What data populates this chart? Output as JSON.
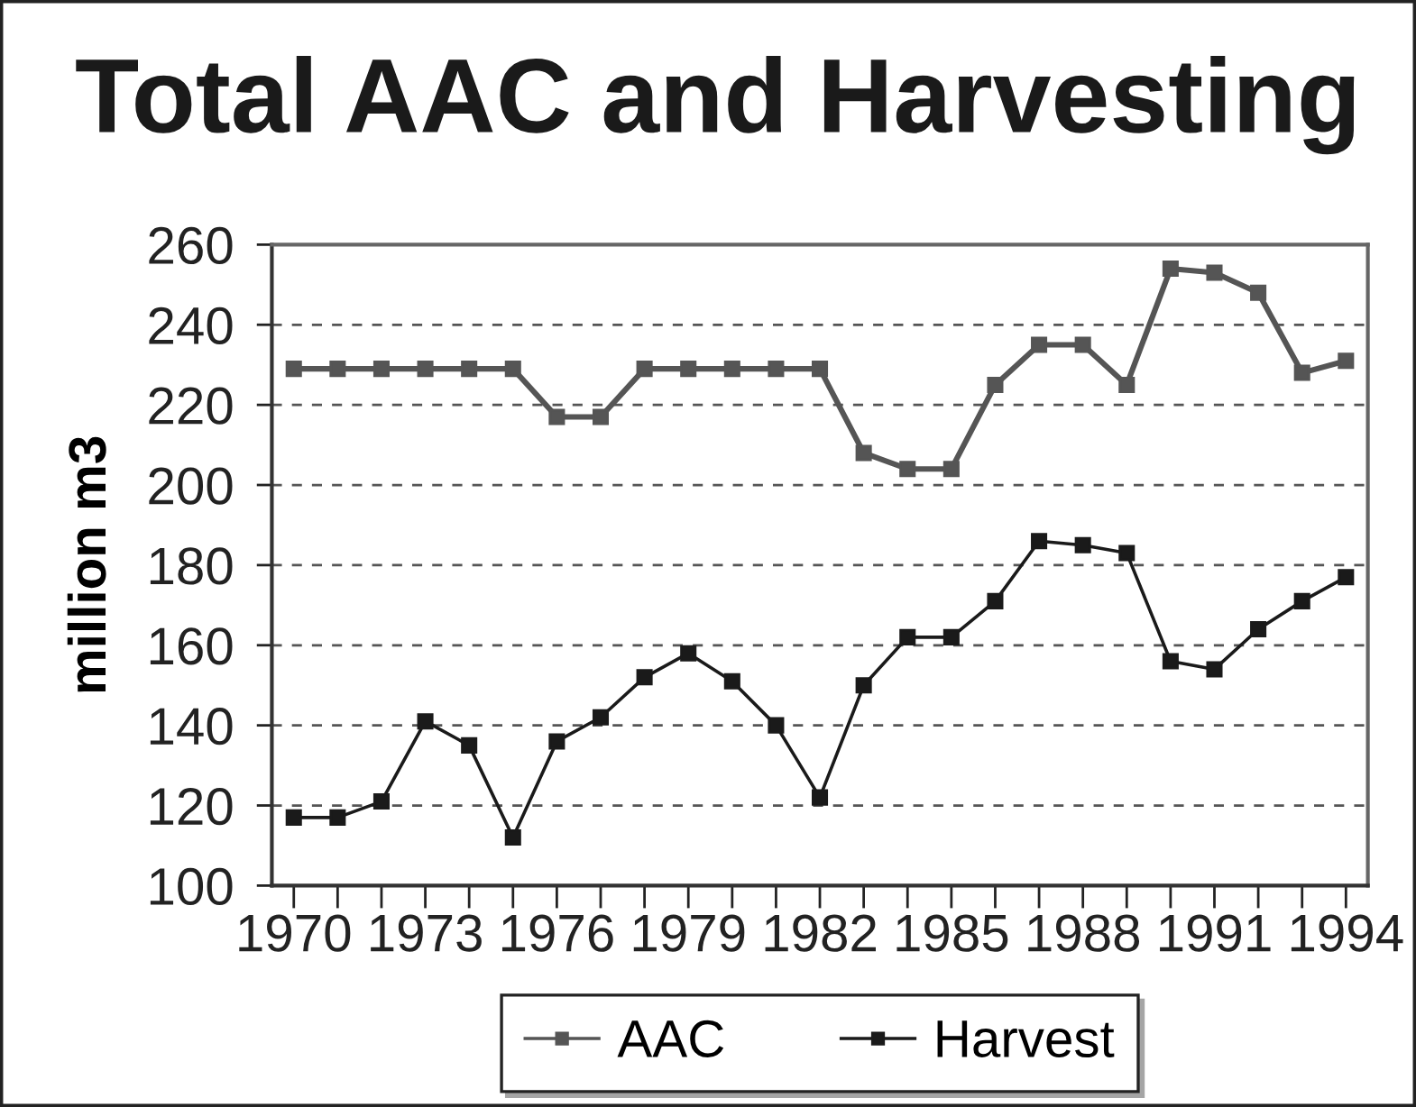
{
  "chart_data": {
    "type": "line",
    "title": "Total AAC and Harvesting",
    "ylabel": "million m3",
    "x": [
      1970,
      1971,
      1972,
      1973,
      1974,
      1975,
      1976,
      1977,
      1978,
      1979,
      1980,
      1981,
      1982,
      1983,
      1984,
      1985,
      1986,
      1987,
      1988,
      1989,
      1990,
      1991,
      1992,
      1993,
      1994
    ],
    "series": [
      {
        "name": "AAC",
        "color": "#555555",
        "values": [
          229,
          229,
          229,
          229,
          229,
          229,
          217,
          217,
          229,
          229,
          229,
          229,
          229,
          208,
          204,
          204,
          225,
          235,
          235,
          225,
          254,
          253,
          248,
          228,
          231
        ]
      },
      {
        "name": "Harvest",
        "color": "#1a1a1a",
        "values": [
          117,
          117,
          121,
          141,
          135,
          112,
          136,
          142,
          152,
          158,
          151,
          140,
          122,
          150,
          162,
          162,
          171,
          186,
          185,
          183,
          156,
          154,
          164,
          171,
          177
        ]
      }
    ],
    "xlim": [
      1969.5,
      1994.5
    ],
    "xticks": [
      1970,
      {
        "value": 1971,
        "label": null
      },
      {
        "value": 1972,
        "label": null
      },
      1973,
      {
        "value": 1974,
        "label": null
      },
      {
        "value": 1975,
        "label": null
      },
      1976,
      {
        "value": 1977,
        "label": null
      },
      {
        "value": 1978,
        "label": null
      },
      1979,
      {
        "value": 1980,
        "label": null
      },
      {
        "value": 1981,
        "label": null
      },
      1982,
      {
        "value": 1983,
        "label": null
      },
      {
        "value": 1984,
        "label": null
      },
      1985,
      {
        "value": 1986,
        "label": null
      },
      {
        "value": 1987,
        "label": null
      },
      1988,
      {
        "value": 1989,
        "label": null
      },
      {
        "value": 1990,
        "label": null
      },
      1991,
      {
        "value": 1992,
        "label": null
      },
      {
        "value": 1993,
        "label": null
      },
      1994
    ],
    "ylim": [
      100,
      260
    ],
    "yticks": [
      100,
      120,
      140,
      160,
      180,
      200,
      220,
      240,
      260
    ],
    "grid": "y",
    "legend": "bottom",
    "marker": "square",
    "line_style": "solid"
  }
}
